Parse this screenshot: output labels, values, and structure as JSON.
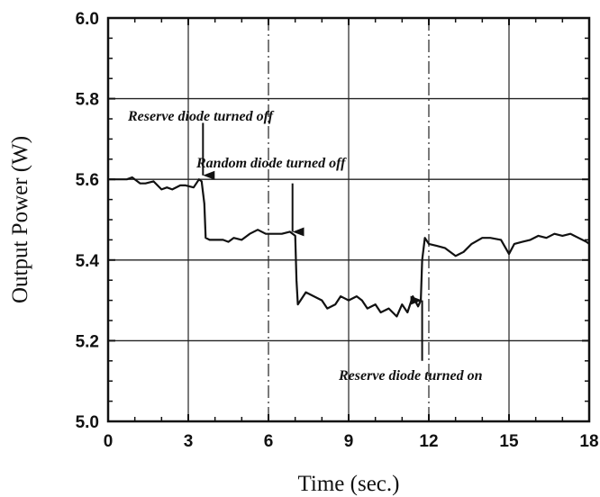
{
  "chart_data": {
    "type": "line",
    "title": "",
    "xlabel": "Time (sec.)",
    "ylabel": "Output Power (W)",
    "xlim": [
      0,
      18
    ],
    "ylim": [
      5.0,
      6.0
    ],
    "xticks": [
      "0",
      "3",
      "6",
      "9",
      "12",
      "15",
      "18"
    ],
    "yticks": [
      "5.0",
      "5.2",
      "5.4",
      "5.6",
      "5.8",
      "6.0"
    ],
    "grid": true,
    "legend": "none",
    "series": [
      {
        "x": [
          0.0,
          0.7,
          0.9,
          1.2,
          1.4,
          1.7,
          2.0,
          2.2,
          2.4,
          2.7,
          2.9,
          3.2,
          3.4,
          3.5,
          3.6,
          3.65,
          3.8,
          4.0,
          4.3,
          4.5,
          4.7,
          5.0,
          5.3,
          5.6,
          5.9,
          6.2,
          6.5,
          6.8,
          7.0,
          7.05,
          7.1,
          7.2,
          7.4,
          7.7,
          8.0,
          8.2,
          8.5,
          8.7,
          9.0,
          9.3,
          9.5,
          9.7,
          10.0,
          10.2,
          10.5,
          10.8,
          11.0,
          11.2,
          11.4,
          11.6,
          11.7,
          11.75,
          11.85,
          12.0,
          12.3,
          12.6,
          13.0,
          13.3,
          13.6,
          14.0,
          14.3,
          14.7,
          15.0,
          15.2,
          15.5,
          15.8,
          16.1,
          16.4,
          16.7,
          17.0,
          17.3,
          17.6,
          17.9,
          18.0
        ],
        "y": [
          5.6,
          5.6,
          5.605,
          5.59,
          5.59,
          5.595,
          5.575,
          5.58,
          5.575,
          5.585,
          5.585,
          5.58,
          5.6,
          5.595,
          5.54,
          5.455,
          5.45,
          5.45,
          5.45,
          5.445,
          5.455,
          5.45,
          5.465,
          5.475,
          5.465,
          5.465,
          5.465,
          5.47,
          5.46,
          5.35,
          5.29,
          5.3,
          5.32,
          5.31,
          5.3,
          5.28,
          5.29,
          5.31,
          5.3,
          5.31,
          5.3,
          5.28,
          5.29,
          5.27,
          5.28,
          5.26,
          5.29,
          5.27,
          5.31,
          5.285,
          5.3,
          5.4,
          5.455,
          5.44,
          5.435,
          5.43,
          5.41,
          5.42,
          5.44,
          5.455,
          5.455,
          5.45,
          5.415,
          5.44,
          5.445,
          5.45,
          5.46,
          5.455,
          5.465,
          5.46,
          5.465,
          5.455,
          5.445,
          5.44
        ]
      }
    ],
    "annotations": [
      {
        "text": "Reserve diode turned off",
        "arrow_x": 3.55,
        "arrow_from_y": 5.74,
        "arrow_to_y": 5.61,
        "direction": "down"
      },
      {
        "text": "Random diode turned off",
        "arrow_x": 6.9,
        "arrow_from_y": 5.59,
        "arrow_to_y": 5.47,
        "direction": "down"
      },
      {
        "text": "Reserve diode turned on",
        "arrow_x": 11.75,
        "arrow_from_y": 5.15,
        "arrow_to_y": 5.3,
        "direction": "up"
      }
    ]
  }
}
